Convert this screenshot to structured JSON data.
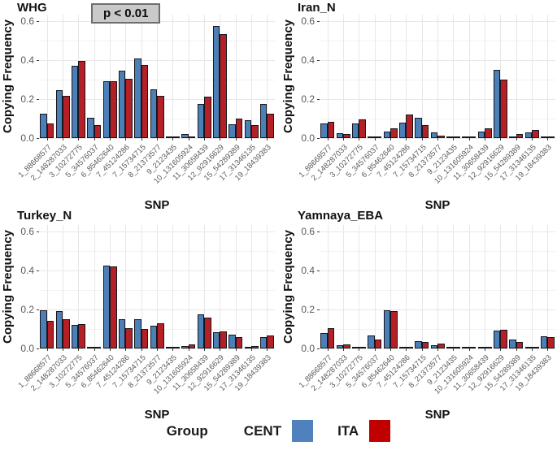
{
  "legend": {
    "title": "Group",
    "items": [
      {
        "label": "CENT",
        "color": "#4f81bd"
      },
      {
        "label": "ITA",
        "color": "#c00000"
      }
    ]
  },
  "chart_data": {
    "type": "bar",
    "layout": "2x2 facets, grouped bars",
    "xlabel": "SNP",
    "ylabel": "Copying Frequency",
    "ylim": [
      0,
      0.6
    ],
    "yticks": [
      0.0,
      0.2,
      0.4,
      0.6
    ],
    "grid": true,
    "legend_position": "bottom",
    "bar_colors": {
      "CENT": "#4c7fb6",
      "ITA": "#b42025"
    },
    "categories": [
      "1_88668577",
      "2_148287033",
      "3_10272775",
      "5_34576037",
      "6_85462640",
      "7_45124286",
      "7_15734715",
      "8_21373577",
      "9_2123435",
      "10_131605924",
      "11_30658439",
      "12_92916629",
      "15_54289389",
      "17_31346135",
      "19_18439383"
    ],
    "panels": [
      {
        "title": "WHG",
        "annotation": "p < 0.01",
        "series": [
          {
            "name": "CENT",
            "values": [
              0.125,
              0.245,
              0.37,
              0.105,
              0.29,
              0.345,
              0.41,
              0.248,
              0.002,
              0.022,
              0.175,
              0.575,
              0.072,
              0.092,
              0.175
            ]
          },
          {
            "name": "ITA",
            "values": [
              0.075,
              0.215,
              0.395,
              0.065,
              0.29,
              0.305,
              0.375,
              0.215,
              0.002,
              0.007,
              0.212,
              0.535,
              0.1,
              0.065,
              0.125
            ]
          }
        ]
      },
      {
        "title": "Iran_N",
        "series": [
          {
            "name": "CENT",
            "values": [
              0.075,
              0.027,
              0.075,
              0.006,
              0.035,
              0.08,
              0.105,
              0.03,
              0.002,
              0.002,
              0.035,
              0.35,
              0.008,
              0.03,
              0.008
            ]
          },
          {
            "name": "ITA",
            "values": [
              0.085,
              0.022,
              0.095,
              0.01,
              0.05,
              0.12,
              0.065,
              0.012,
              0.002,
              0.003,
              0.048,
              0.3,
              0.02,
              0.04,
              0.01
            ]
          }
        ]
      },
      {
        "title": "Turkey_N",
        "series": [
          {
            "name": "CENT",
            "values": [
              0.195,
              0.19,
              0.12,
              0.003,
              0.425,
              0.15,
              0.15,
              0.115,
              0.002,
              0.012,
              0.175,
              0.085,
              0.07,
              0.007,
              0.06
            ]
          },
          {
            "name": "ITA",
            "values": [
              0.14,
              0.148,
              0.125,
              0.006,
              0.422,
              0.105,
              0.1,
              0.128,
              0.002,
              0.022,
              0.16,
              0.088,
              0.058,
              0.012,
              0.065
            ]
          }
        ]
      },
      {
        "title": "Yamnaya_EBA",
        "series": [
          {
            "name": "CENT",
            "values": [
              0.08,
              0.015,
              0.002,
              0.065,
              0.195,
              0.002,
              0.038,
              0.018,
              0.001,
              0.001,
              0.008,
              0.09,
              0.045,
              0.001,
              0.062
            ]
          },
          {
            "name": "ITA",
            "values": [
              0.105,
              0.02,
              0.002,
              0.045,
              0.19,
              0.002,
              0.032,
              0.027,
              0.001,
              0.001,
              0.01,
              0.095,
              0.032,
              0.002,
              0.06
            ]
          }
        ]
      }
    ]
  }
}
